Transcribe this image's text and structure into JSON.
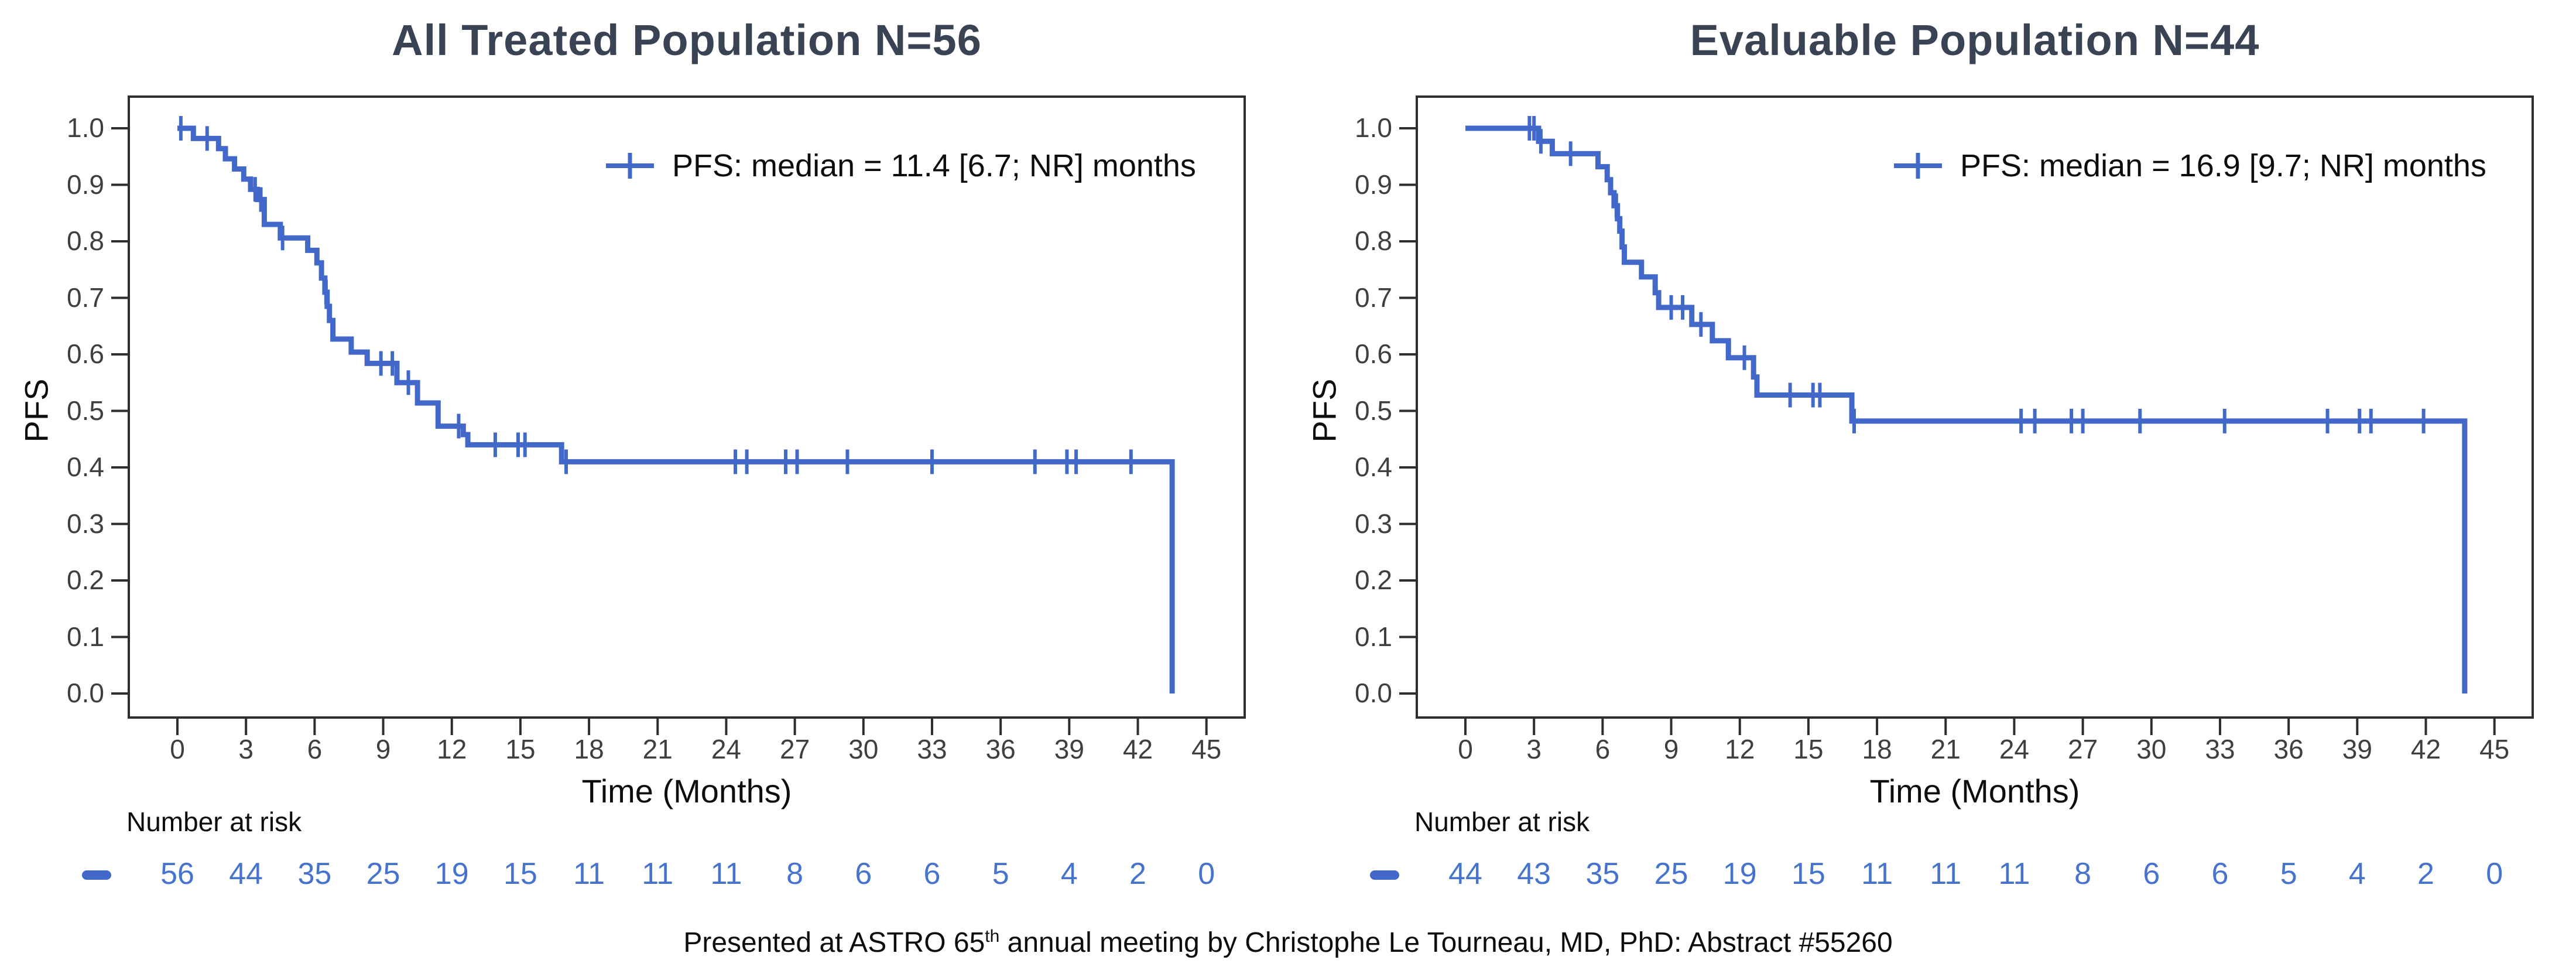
{
  "colors": {
    "series_blue": "#4269c9",
    "risk_text_blue": "#4673cd",
    "title_color": "#3a4353",
    "axis_color": "#2e2e2e",
    "tick_label_color": "#3f3f3f",
    "text_color": "#0d0d0d"
  },
  "footer": {
    "prefix": "Presented at ASTRO 65",
    "sup": "th",
    "suffix": " annual meeting by Christophe Le Tourneau, MD, PhD: Abstract #55260"
  },
  "chart_data": [
    {
      "type": "line",
      "subtype": "kaplan-meier-step",
      "title": "All Treated Population N=56",
      "legend_label": "PFS: median = 11.4 [6.7; NR] months",
      "legend_position": "top-right-inside",
      "ylabel": "PFS",
      "xlabel": "Time (Months)",
      "xlim": [
        0,
        45
      ],
      "ylim": [
        0.0,
        1.0
      ],
      "grid": "off",
      "x_ticks": [
        0,
        3,
        6,
        9,
        12,
        15,
        18,
        21,
        24,
        27,
        30,
        33,
        36,
        39,
        42,
        45
      ],
      "y_ticks": [
        "1.0",
        "0.9",
        "0.8",
        "0.7",
        "0.6",
        "0.5",
        "0.4",
        "0.3",
        "0.2",
        "0.1",
        "0.0"
      ],
      "series": {
        "name": "PFS",
        "color": "#4269c9",
        "steps": [
          [
            0,
            1.0
          ],
          [
            0.7,
            0.982
          ],
          [
            1.8,
            0.964
          ],
          [
            2.1,
            0.946
          ],
          [
            2.5,
            0.928
          ],
          [
            2.9,
            0.91
          ],
          [
            3.2,
            0.892
          ],
          [
            3.5,
            0.874
          ],
          [
            3.8,
            0.83
          ],
          [
            4.5,
            0.806
          ],
          [
            5.7,
            0.784
          ],
          [
            6.1,
            0.762
          ],
          [
            6.3,
            0.735
          ],
          [
            6.45,
            0.71
          ],
          [
            6.55,
            0.685
          ],
          [
            6.65,
            0.66
          ],
          [
            6.8,
            0.627
          ],
          [
            7.6,
            0.604
          ],
          [
            8.3,
            0.584
          ],
          [
            9.6,
            0.55
          ],
          [
            10.5,
            0.514
          ],
          [
            11.4,
            0.473
          ],
          [
            12.5,
            0.458
          ],
          [
            12.7,
            0.44
          ],
          [
            16.8,
            0.41
          ],
          [
            43.5,
            0.0
          ]
        ],
        "censor_marks": [
          [
            0.15,
            1.0
          ],
          [
            1.3,
            0.982
          ],
          [
            3.4,
            0.892
          ],
          [
            3.65,
            0.874
          ],
          [
            4.6,
            0.806
          ],
          [
            6.5,
            0.71
          ],
          [
            8.9,
            0.584
          ],
          [
            9.4,
            0.584
          ],
          [
            10.1,
            0.55
          ],
          [
            12.3,
            0.473
          ],
          [
            13.9,
            0.44
          ],
          [
            14.9,
            0.44
          ],
          [
            15.2,
            0.44
          ],
          [
            17.0,
            0.41
          ],
          [
            24.4,
            0.41
          ],
          [
            24.9,
            0.41
          ],
          [
            26.6,
            0.41
          ],
          [
            27.1,
            0.41
          ],
          [
            29.3,
            0.41
          ],
          [
            33.0,
            0.41
          ],
          [
            37.5,
            0.41
          ],
          [
            38.9,
            0.41
          ],
          [
            39.3,
            0.41
          ],
          [
            41.7,
            0.41
          ]
        ]
      },
      "number_at_risk": {
        "label": "Number at risk",
        "times": [
          0,
          3,
          6,
          9,
          12,
          15,
          18,
          21,
          24,
          27,
          30,
          33,
          36,
          39,
          42,
          45
        ],
        "counts": [
          "56",
          "44",
          "35",
          "25",
          "19",
          "15",
          "11",
          "11",
          "11",
          "8",
          "6",
          "6",
          "5",
          "4",
          "2",
          "0"
        ]
      }
    },
    {
      "type": "line",
      "subtype": "kaplan-meier-step",
      "title": "Evaluable Population N=44",
      "legend_label": "PFS: median = 16.9 [9.7; NR] months",
      "legend_position": "top-right-inside",
      "ylabel": "PFS",
      "xlabel": "Time (Months)",
      "xlim": [
        0,
        45
      ],
      "ylim": [
        0.0,
        1.0
      ],
      "grid": "off",
      "x_ticks": [
        0,
        3,
        6,
        9,
        12,
        15,
        18,
        21,
        24,
        27,
        30,
        33,
        36,
        39,
        42,
        45
      ],
      "y_ticks": [
        "1.0",
        "0.9",
        "0.8",
        "0.7",
        "0.6",
        "0.5",
        "0.4",
        "0.3",
        "0.2",
        "0.1",
        "0.0"
      ],
      "series": {
        "name": "PFS",
        "color": "#4269c9",
        "steps": [
          [
            0,
            1.0
          ],
          [
            3.2,
            0.977
          ],
          [
            3.8,
            0.955
          ],
          [
            5.8,
            0.932
          ],
          [
            6.2,
            0.909
          ],
          [
            6.35,
            0.886
          ],
          [
            6.5,
            0.863
          ],
          [
            6.65,
            0.84
          ],
          [
            6.75,
            0.818
          ],
          [
            6.85,
            0.79
          ],
          [
            6.95,
            0.763
          ],
          [
            7.7,
            0.737
          ],
          [
            8.3,
            0.709
          ],
          [
            8.45,
            0.683
          ],
          [
            9.9,
            0.653
          ],
          [
            10.8,
            0.624
          ],
          [
            11.5,
            0.594
          ],
          [
            12.6,
            0.56
          ],
          [
            12.75,
            0.528
          ],
          [
            16.9,
            0.482
          ],
          [
            43.7,
            0.0
          ]
        ],
        "censor_marks": [
          [
            2.8,
            1.0
          ],
          [
            3.0,
            1.0
          ],
          [
            3.3,
            0.977
          ],
          [
            4.6,
            0.955
          ],
          [
            6.6,
            0.863
          ],
          [
            9.0,
            0.683
          ],
          [
            9.5,
            0.683
          ],
          [
            10.3,
            0.653
          ],
          [
            12.2,
            0.594
          ],
          [
            14.2,
            0.528
          ],
          [
            15.2,
            0.528
          ],
          [
            15.5,
            0.528
          ],
          [
            17.0,
            0.482
          ],
          [
            24.3,
            0.482
          ],
          [
            24.9,
            0.482
          ],
          [
            26.5,
            0.482
          ],
          [
            27.0,
            0.482
          ],
          [
            29.5,
            0.482
          ],
          [
            33.2,
            0.482
          ],
          [
            37.7,
            0.482
          ],
          [
            39.1,
            0.482
          ],
          [
            39.6,
            0.482
          ],
          [
            41.9,
            0.482
          ]
        ]
      },
      "number_at_risk": {
        "label": "Number at risk",
        "times": [
          0,
          3,
          6,
          9,
          12,
          15,
          18,
          21,
          24,
          27,
          30,
          33,
          36,
          39,
          42,
          45
        ],
        "counts": [
          "44",
          "43",
          "35",
          "25",
          "19",
          "15",
          "11",
          "11",
          "11",
          "8",
          "6",
          "6",
          "5",
          "4",
          "2",
          "0"
        ]
      }
    }
  ]
}
